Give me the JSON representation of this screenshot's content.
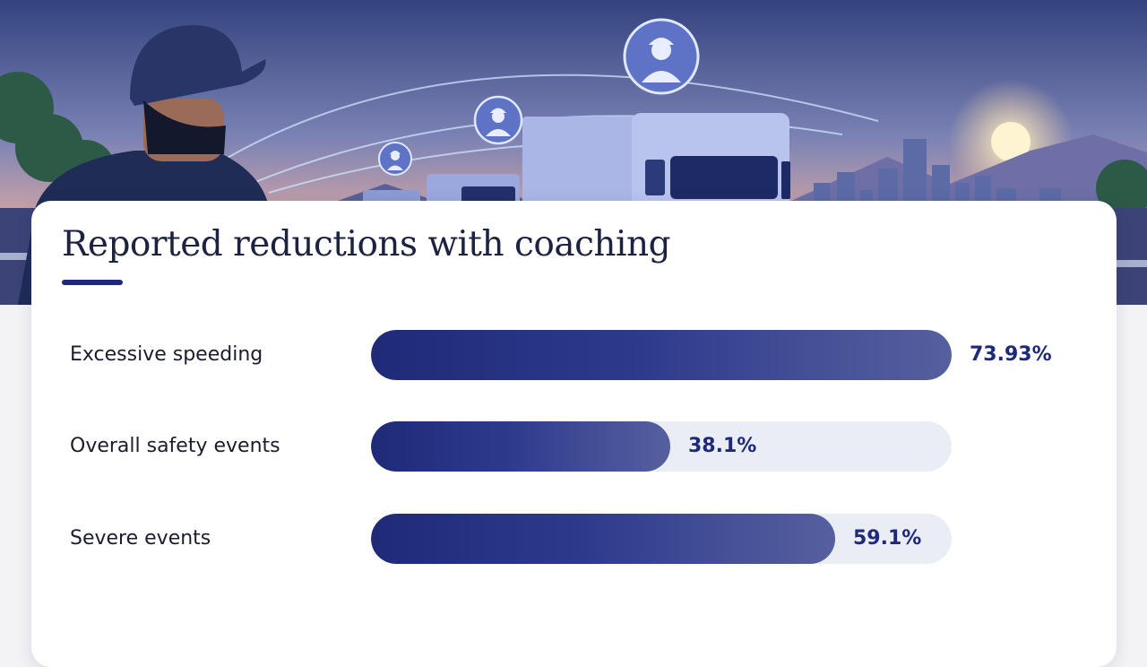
{
  "colors": {
    "accent": "#1e2a78",
    "bar_start": "#1f2a78",
    "bar_end": "#56609f",
    "track": "#ebedf5",
    "sky_top": "#33437f",
    "sky_bottom": "#f0b488"
  },
  "hero": {
    "icons": [
      "driver-avatar-icon",
      "driver-avatar-icon",
      "driver-avatar-icon"
    ]
  },
  "chart_data": {
    "type": "bar",
    "orientation": "horizontal",
    "title": "Reported reductions with coaching",
    "xlabel": "",
    "ylabel": "",
    "xlim": [
      0,
      100
    ],
    "unit": "%",
    "grid": false,
    "categories": [
      "Excessive speeding",
      "Overall safety events",
      "Severe events"
    ],
    "values": [
      73.93,
      38.1,
      59.1
    ],
    "value_labels": [
      "73.93%",
      "38.1%",
      "59.1%"
    ]
  }
}
